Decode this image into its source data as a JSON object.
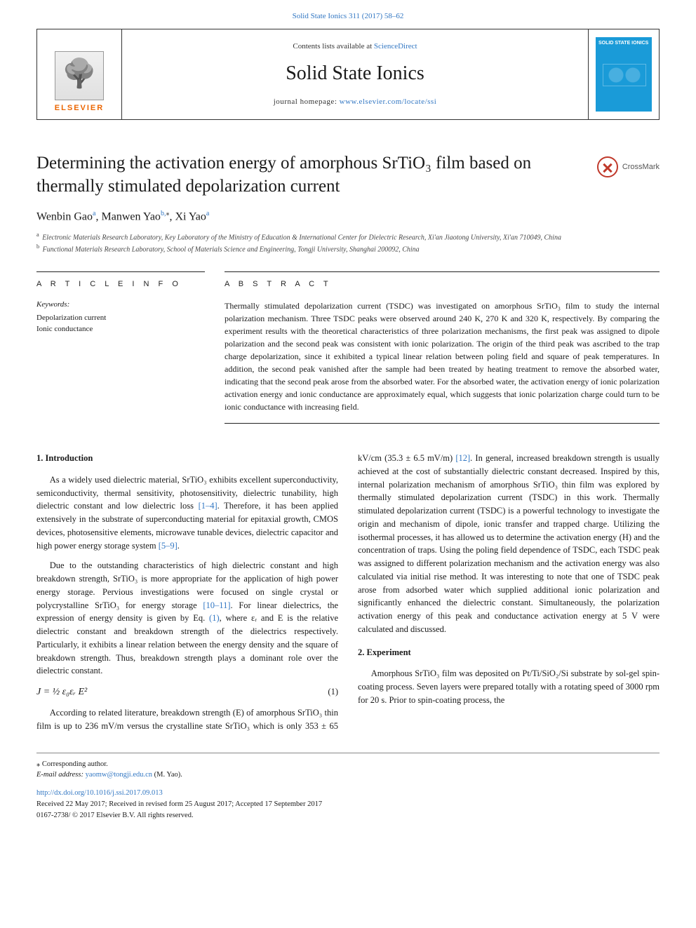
{
  "journal_ref": "Solid State Ionics 311 (2017) 58–62",
  "header": {
    "publisher_word": "ELSEVIER",
    "contents_prefix": "Contents lists available at ",
    "contents_link": "ScienceDirect",
    "journal_name": "Solid State Ionics",
    "homepage_prefix": "journal homepage: ",
    "homepage_link": "www.elsevier.com/locate/ssi",
    "cover_title": "SOLID STATE IONICS",
    "crossmark": "CrossMark"
  },
  "title": "Determining the activation energy of amorphous SrTiO₃ film based on thermally stimulated depolarization current",
  "authors": {
    "a1_name": "Wenbin Gao",
    "a1_aff": "a",
    "a2_name": "Manwen Yao",
    "a2_aff": "b,",
    "a2_star": "⁎",
    "a3_name": "Xi Yao",
    "a3_aff": "a"
  },
  "affiliations": {
    "a": "Electronic Materials Research Laboratory, Key Laboratory of the Ministry of Education & International Center for Dielectric Research, Xi'an Jiaotong University, Xi'an 710049, China",
    "b": "Functional Materials Research Laboratory, School of Materials Science and Engineering, Tongji University, Shanghai 200092, China"
  },
  "labels": {
    "article_info": "A R T I C L E   I N F O",
    "abstract": "A B S T R A C T",
    "keywords": "Keywords:"
  },
  "keywords": {
    "k1": "Depolarization current",
    "k2": "Ionic conductance"
  },
  "abstract": "Thermally stimulated depolarization current (TSDC) was investigated on amorphous SrTiO₃ film to study the internal polarization mechanism. Three TSDC peaks were observed around 240 K, 270 K and 320 K, respectively. By comparing the experiment results with the theoretical characteristics of three polarization mechanisms, the first peak was assigned to dipole polarization and the second peak was consistent with ionic polarization. The origin of the third peak was ascribed to the trap charge depolarization, since it exhibited a typical linear relation between poling field and square of peak temperatures. In addition, the second peak vanished after the sample had been treated by heating treatment to remove the absorbed water, indicating that the second peak arose from the absorbed water. For the absorbed water, the activation energy of ionic polarization activation energy and ionic conductance are approximately equal, which suggests that ionic polarization charge could turn to be ionic conductance with increasing field.",
  "sections": {
    "intro_heading": "1. Introduction",
    "exp_heading": "2. Experiment"
  },
  "body": {
    "p1a": "As a widely used dielectric material, SrTiO₃ exhibits excellent superconductivity, semiconductivity, thermal sensitivity, photosensitivity, dielectric tunability, high dielectric constant and low dielectric loss ",
    "p1_ref1": "[1–4]",
    "p1b": ". Therefore, it has been applied extensively in the substrate of superconducting material for epitaxial growth, CMOS devices, photosensitive elements, microwave tunable devices, dielectric capacitor and high power energy storage system ",
    "p1_ref2": "[5–9]",
    "p1c": ".",
    "p2a": "Due to the outstanding characteristics of high dielectric constant and high breakdown strength, SrTiO₃ is more appropriate for the application of high power energy storage. Pervious investigations were focused on single crystal or polycrystalline SrTiO₃ for energy storage ",
    "p2_ref1": "[10–11]",
    "p2b": ". For linear dielectrics, the expression of energy density is given by Eq. ",
    "p2_ref2": "(1)",
    "p2c": ", where εᵣ and E is the relative dielectric constant and breakdown strength of the dielectrics respectively. Particularly, it exhibits a linear relation between the energy density and the square of breakdown strength. Thus, breakdown strength plays a dominant role over the dielectric constant.",
    "eq1": "J = ½ ε₀εᵣ E²",
    "eq1_num": "(1)",
    "p3a": "According to related literature, breakdown strength (E) of amorphous SrTiO₃ thin film is up to 236 mV/m versus the crystalline state SrTiO₃ which is only 353 ± 65 kV/cm (35.3 ± 6.5 mV/m) ",
    "p3_ref1": "[12]",
    "p3b": ". In general, increased breakdown strength is usually achieved at the cost of substantially dielectric constant decreased. Inspired by this, internal polarization mechanism of amorphous SrTiO₃ thin film was explored by thermally stimulated depolarization current (TSDC) in this work. Thermally stimulated depolarization current (TSDC) is a powerful technology to investigate the origin and mechanism of dipole, ionic transfer and trapped charge. Utilizing the isothermal processes, it has allowed us to determine the activation energy (H) and the concentration of traps. Using the poling field dependence of TSDC, each TSDC peak was assigned to different polarization mechanism and the activation energy was also calculated via initial rise method. It was interesting to note that one of TSDC peak arose from adsorbed water which supplied additional ionic polarization and significantly enhanced the dielectric constant. Simultaneously, the polarization activation energy of this peak and conductance activation energy at 5 V were calculated and discussed.",
    "p4": "Amorphous SrTiO₃ film was deposited on Pt/Ti/SiO₂/Si substrate by sol-gel spin-coating process. Seven layers were prepared totally with a rotating speed of 3000 rpm for 20 s. Prior to spin-coating process, the"
  },
  "footer": {
    "corr": "⁎ Corresponding author.",
    "email_label": "E-mail address: ",
    "email": "yaomw@tongji.edu.cn",
    "email_suffix": " (M. Yao).",
    "doi": "http://dx.doi.org/10.1016/j.ssi.2017.09.013",
    "received": "Received 22 May 2017; Received in revised form 25 August 2017; Accepted 17 September 2017",
    "issn": "0167-2738/ © 2017 Elsevier B.V. All rights reserved."
  },
  "colors": {
    "link": "#3277c3",
    "publisher_orange": "#eb6500",
    "cover_blue": "#1a9bd8",
    "crossmark_red": "#c0392b",
    "rule": "#222222"
  }
}
